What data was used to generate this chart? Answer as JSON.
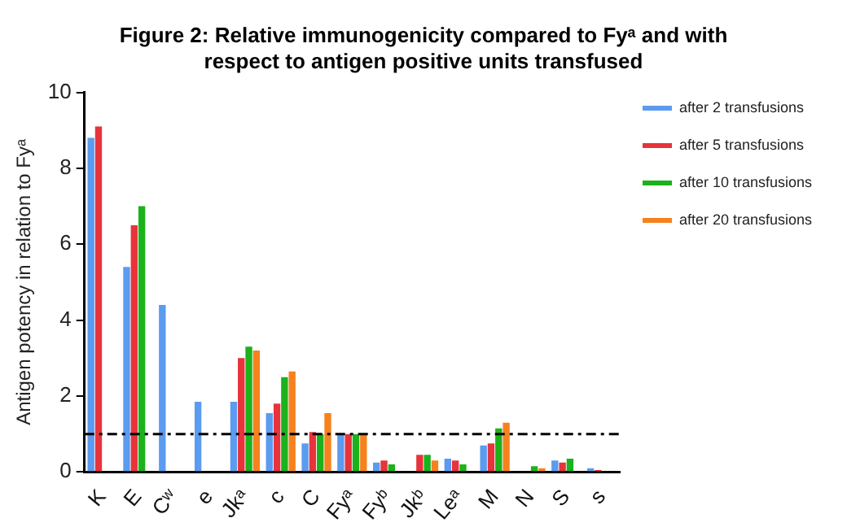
{
  "chart_data": {
    "type": "bar",
    "title": "Figure 2: Relative immunogenicity compared to Fyᵃ and with respect to antigen positive units transfused",
    "ylabel": "Antigen potency in relation to Fyᵃ",
    "categories": [
      "K",
      "E",
      "Cʷ",
      "e",
      "Jkᵃ",
      "c",
      "C",
      "Fyᵃ",
      "Fyᵇ",
      "Jkᵇ",
      "Leᵃ",
      "M",
      "N",
      "S",
      "s"
    ],
    "series": [
      {
        "name": "after 2 transfusions",
        "color": "#5b9bf0",
        "values": [
          8.8,
          5.4,
          4.4,
          1.85,
          1.85,
          1.55,
          0.75,
          1.0,
          0.25,
          null,
          0.35,
          0.7,
          null,
          0.3,
          0.1
        ]
      },
      {
        "name": "after 5 transfusions",
        "color": "#e8333b",
        "values": [
          9.1,
          6.5,
          null,
          null,
          3.0,
          1.8,
          1.05,
          1.0,
          0.3,
          0.45,
          0.3,
          0.75,
          null,
          0.25,
          0.05
        ]
      },
      {
        "name": "after 10 transfusions",
        "color": "#1bb21b",
        "values": [
          null,
          7.0,
          null,
          null,
          3.3,
          2.5,
          1.0,
          1.0,
          0.2,
          0.45,
          0.2,
          1.15,
          0.15,
          0.35,
          null
        ]
      },
      {
        "name": "after 20 transfusions",
        "color": "#f5821f",
        "values": [
          null,
          null,
          null,
          null,
          3.2,
          2.65,
          1.55,
          1.0,
          null,
          0.3,
          null,
          1.3,
          0.1,
          null,
          null
        ]
      }
    ],
    "ylim": [
      0,
      10
    ],
    "yticks": [
      0,
      2,
      4,
      6,
      8,
      10
    ],
    "grid": false,
    "legend": "right",
    "ref_lines": [
      {
        "axis": "y",
        "value": 1,
        "line_style": "dashdot",
        "color": "#000000"
      }
    ]
  }
}
